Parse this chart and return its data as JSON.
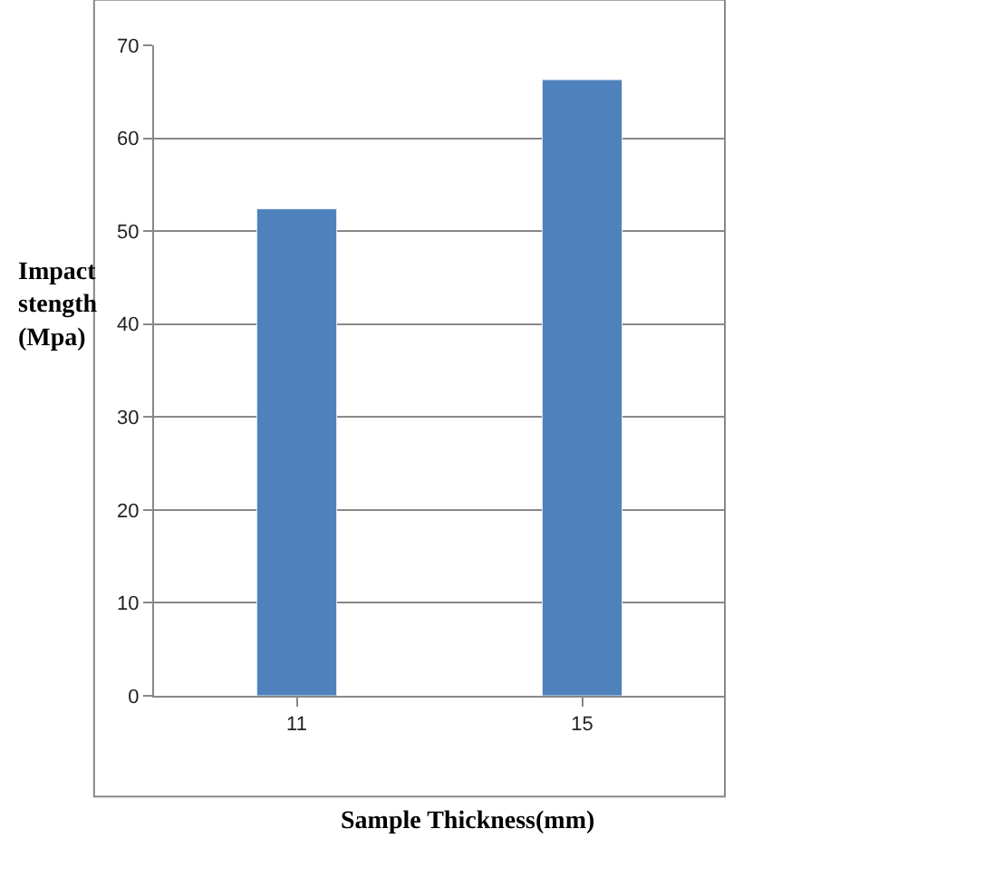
{
  "chart_data": {
    "type": "bar",
    "xlabel": "Sample Thickness(mm)",
    "ylabel": "Impact\nstength\n(Mpa)",
    "categories": [
      "11",
      "15"
    ],
    "series": [
      {
        "color": "#4f81bd",
        "values": [
          52.4,
          66.3
        ]
      }
    ],
    "ylim": [
      0,
      70
    ],
    "yticks": [
      0,
      10,
      20,
      30,
      40,
      50,
      60,
      70
    ],
    "grid": "y"
  }
}
